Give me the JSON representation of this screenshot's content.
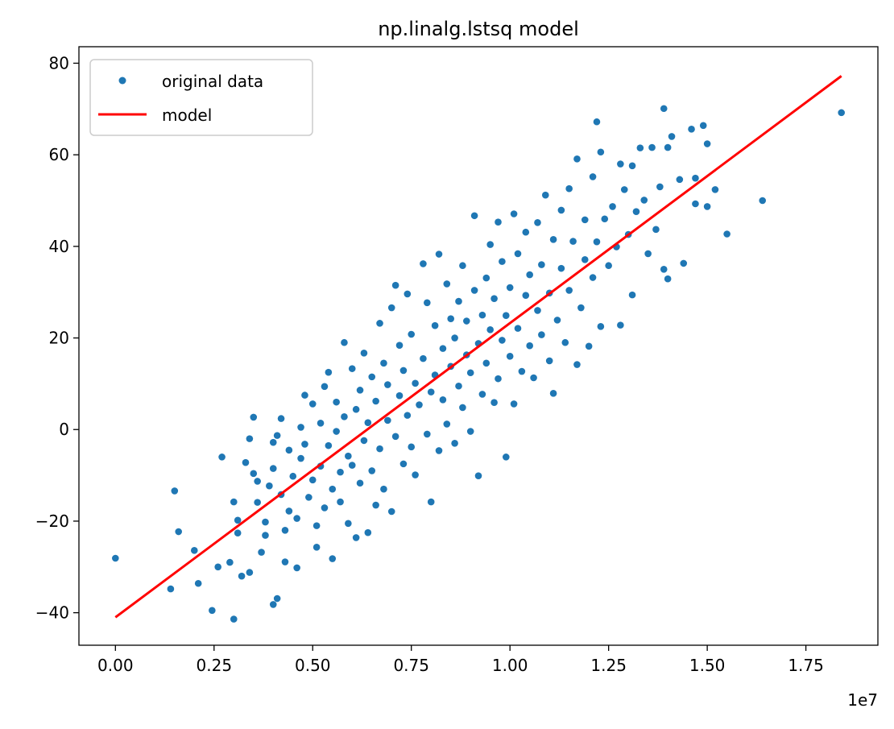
{
  "chart_data": {
    "type": "scatter",
    "title": "np.linalg.lstsq model",
    "xlabel": "",
    "ylabel": "",
    "x_offset_label": "1e7",
    "xlim": [
      -0.0925,
      1.9325
    ],
    "ylim": [
      -47.1,
      83.6
    ],
    "x_ticks": [
      0.0,
      0.25,
      0.5,
      0.75,
      1.0,
      1.25,
      1.5,
      1.75
    ],
    "x_tick_labels": [
      "0.00",
      "0.25",
      "0.50",
      "0.75",
      "1.00",
      "1.25",
      "1.50",
      "1.75"
    ],
    "y_ticks": [
      -40,
      -20,
      0,
      20,
      40,
      60,
      80
    ],
    "y_tick_labels": [
      "−40",
      "−20",
      "0",
      "20",
      "40",
      "60",
      "80"
    ],
    "grid": false,
    "legend_position": "upper-left",
    "series": [
      {
        "name": "original data",
        "kind": "points",
        "color": "#1f77b4",
        "points": [
          [
            0.0,
            -28.1
          ],
          [
            0.14,
            -34.8
          ],
          [
            0.15,
            -13.4
          ],
          [
            0.16,
            -22.3
          ],
          [
            0.2,
            -26.4
          ],
          [
            0.21,
            -33.6
          ],
          [
            0.245,
            -39.5
          ],
          [
            0.26,
            -30.0
          ],
          [
            0.27,
            -6.0
          ],
          [
            0.29,
            -29.0
          ],
          [
            0.3,
            -41.4
          ],
          [
            0.3,
            -15.8
          ],
          [
            0.31,
            -19.8
          ],
          [
            0.31,
            -22.6
          ],
          [
            0.32,
            -32.0
          ],
          [
            0.33,
            -7.2
          ],
          [
            0.34,
            -31.2
          ],
          [
            0.34,
            -2.0
          ],
          [
            0.35,
            2.7
          ],
          [
            0.35,
            -9.6
          ],
          [
            0.36,
            -11.3
          ],
          [
            0.36,
            -15.9
          ],
          [
            0.37,
            -26.8
          ],
          [
            0.38,
            -20.2
          ],
          [
            0.38,
            -23.1
          ],
          [
            0.39,
            -12.3
          ],
          [
            0.4,
            -38.2
          ],
          [
            0.4,
            -8.5
          ],
          [
            0.4,
            -2.8
          ],
          [
            0.41,
            -36.9
          ],
          [
            0.41,
            -1.3
          ],
          [
            0.42,
            2.4
          ],
          [
            0.42,
            -14.2
          ],
          [
            0.43,
            -28.9
          ],
          [
            0.43,
            -22.0
          ],
          [
            0.44,
            -17.8
          ],
          [
            0.44,
            -4.5
          ],
          [
            0.45,
            -10.2
          ],
          [
            0.46,
            -30.2
          ],
          [
            0.46,
            -19.4
          ],
          [
            0.47,
            -6.3
          ],
          [
            0.47,
            0.5
          ],
          [
            0.48,
            -3.2
          ],
          [
            0.48,
            7.5
          ],
          [
            0.49,
            -14.8
          ],
          [
            0.5,
            -11.0
          ],
          [
            0.5,
            5.6
          ],
          [
            0.51,
            -25.7
          ],
          [
            0.51,
            -21.0
          ],
          [
            0.52,
            -8.0
          ],
          [
            0.52,
            1.4
          ],
          [
            0.53,
            9.4
          ],
          [
            0.53,
            -17.1
          ],
          [
            0.54,
            -3.5
          ],
          [
            0.54,
            12.5
          ],
          [
            0.55,
            -28.2
          ],
          [
            0.55,
            -13.0
          ],
          [
            0.56,
            -0.4
          ],
          [
            0.56,
            6.0
          ],
          [
            0.57,
            -9.3
          ],
          [
            0.57,
            -15.8
          ],
          [
            0.58,
            19.0
          ],
          [
            0.58,
            2.8
          ],
          [
            0.59,
            -20.5
          ],
          [
            0.59,
            -5.8
          ],
          [
            0.6,
            13.3
          ],
          [
            0.6,
            -7.8
          ],
          [
            0.61,
            -23.6
          ],
          [
            0.61,
            4.4
          ],
          [
            0.62,
            -11.7
          ],
          [
            0.62,
            8.6
          ],
          [
            0.63,
            -2.4
          ],
          [
            0.63,
            16.7
          ],
          [
            0.64,
            -22.5
          ],
          [
            0.64,
            1.5
          ],
          [
            0.65,
            -9.0
          ],
          [
            0.65,
            11.5
          ],
          [
            0.66,
            -16.5
          ],
          [
            0.66,
            6.2
          ],
          [
            0.67,
            -4.2
          ],
          [
            0.67,
            23.2
          ],
          [
            0.68,
            14.5
          ],
          [
            0.68,
            -13.0
          ],
          [
            0.69,
            2.0
          ],
          [
            0.69,
            9.8
          ],
          [
            0.7,
            -17.9
          ],
          [
            0.7,
            26.6
          ],
          [
            0.71,
            31.5
          ],
          [
            0.71,
            -1.5
          ],
          [
            0.72,
            18.4
          ],
          [
            0.72,
            7.4
          ],
          [
            0.73,
            -7.5
          ],
          [
            0.73,
            12.9
          ],
          [
            0.74,
            29.6
          ],
          [
            0.74,
            3.1
          ],
          [
            0.75,
            -3.8
          ],
          [
            0.75,
            20.8
          ],
          [
            0.76,
            10.1
          ],
          [
            0.76,
            -9.9
          ],
          [
            0.77,
            5.4
          ],
          [
            0.78,
            36.2
          ],
          [
            0.78,
            15.5
          ],
          [
            0.79,
            -1.0
          ],
          [
            0.79,
            27.7
          ],
          [
            0.8,
            8.2
          ],
          [
            0.8,
            -15.8
          ],
          [
            0.81,
            22.7
          ],
          [
            0.81,
            11.9
          ],
          [
            0.82,
            38.3
          ],
          [
            0.82,
            -4.6
          ],
          [
            0.83,
            17.7
          ],
          [
            0.83,
            6.5
          ],
          [
            0.84,
            31.8
          ],
          [
            0.84,
            1.2
          ],
          [
            0.85,
            24.2
          ],
          [
            0.85,
            13.8
          ],
          [
            0.86,
            -3.0
          ],
          [
            0.86,
            20.0
          ],
          [
            0.87,
            9.5
          ],
          [
            0.87,
            28.0
          ],
          [
            0.88,
            35.8
          ],
          [
            0.88,
            4.8
          ],
          [
            0.89,
            16.3
          ],
          [
            0.89,
            23.7
          ],
          [
            0.9,
            -0.4
          ],
          [
            0.9,
            12.4
          ],
          [
            0.91,
            46.7
          ],
          [
            0.91,
            30.4
          ],
          [
            0.92,
            18.8
          ],
          [
            0.92,
            -10.1
          ],
          [
            0.93,
            7.7
          ],
          [
            0.93,
            25.0
          ],
          [
            0.94,
            33.1
          ],
          [
            0.94,
            14.5
          ],
          [
            0.95,
            21.8
          ],
          [
            0.95,
            40.4
          ],
          [
            0.96,
            5.9
          ],
          [
            0.96,
            28.6
          ],
          [
            0.97,
            11.1
          ],
          [
            0.97,
            45.3
          ],
          [
            0.98,
            19.5
          ],
          [
            0.98,
            36.7
          ],
          [
            0.99,
            -6.0
          ],
          [
            0.99,
            24.9
          ],
          [
            1.0,
            16.0
          ],
          [
            1.0,
            31.0
          ],
          [
            1.01,
            47.1
          ],
          [
            1.01,
            5.6
          ],
          [
            1.02,
            22.1
          ],
          [
            1.02,
            38.4
          ],
          [
            1.03,
            12.7
          ],
          [
            1.04,
            29.3
          ],
          [
            1.04,
            43.1
          ],
          [
            1.05,
            18.3
          ],
          [
            1.05,
            33.8
          ],
          [
            1.06,
            11.3
          ],
          [
            1.07,
            26.0
          ],
          [
            1.07,
            45.2
          ],
          [
            1.08,
            20.7
          ],
          [
            1.08,
            36.0
          ],
          [
            1.09,
            51.2
          ],
          [
            1.1,
            15.0
          ],
          [
            1.1,
            29.8
          ],
          [
            1.11,
            7.9
          ],
          [
            1.11,
            41.5
          ],
          [
            1.12,
            23.9
          ],
          [
            1.13,
            47.9
          ],
          [
            1.13,
            35.2
          ],
          [
            1.14,
            19.0
          ],
          [
            1.15,
            52.6
          ],
          [
            1.15,
            30.4
          ],
          [
            1.16,
            41.1
          ],
          [
            1.17,
            14.2
          ],
          [
            1.17,
            59.1
          ],
          [
            1.18,
            26.6
          ],
          [
            1.19,
            45.8
          ],
          [
            1.19,
            37.1
          ],
          [
            1.2,
            18.2
          ],
          [
            1.21,
            55.2
          ],
          [
            1.21,
            33.2
          ],
          [
            1.22,
            67.2
          ],
          [
            1.22,
            41.0
          ],
          [
            1.23,
            22.5
          ],
          [
            1.23,
            60.6
          ],
          [
            1.24,
            46.0
          ],
          [
            1.25,
            35.8
          ],
          [
            1.26,
            48.7
          ],
          [
            1.27,
            39.9
          ],
          [
            1.28,
            58.0
          ],
          [
            1.28,
            22.8
          ],
          [
            1.29,
            52.4
          ],
          [
            1.3,
            42.6
          ],
          [
            1.31,
            57.6
          ],
          [
            1.31,
            29.4
          ],
          [
            1.32,
            47.6
          ],
          [
            1.33,
            61.5
          ],
          [
            1.34,
            50.1
          ],
          [
            1.35,
            38.4
          ],
          [
            1.36,
            61.6
          ],
          [
            1.37,
            43.7
          ],
          [
            1.38,
            53.0
          ],
          [
            1.39,
            35.0
          ],
          [
            1.39,
            70.1
          ],
          [
            1.4,
            61.6
          ],
          [
            1.4,
            32.9
          ],
          [
            1.41,
            64.0
          ],
          [
            1.43,
            54.6
          ],
          [
            1.44,
            36.3
          ],
          [
            1.46,
            65.6
          ],
          [
            1.47,
            49.3
          ],
          [
            1.47,
            54.9
          ],
          [
            1.49,
            66.4
          ],
          [
            1.5,
            48.7
          ],
          [
            1.5,
            62.4
          ],
          [
            1.52,
            52.4
          ],
          [
            1.55,
            42.7
          ],
          [
            1.64,
            50.0
          ],
          [
            1.84,
            69.2
          ]
        ]
      },
      {
        "name": "model",
        "kind": "line",
        "color": "#ff0000",
        "points": [
          [
            0.0,
            -41.0
          ],
          [
            1.84,
            77.2
          ]
        ]
      }
    ]
  }
}
